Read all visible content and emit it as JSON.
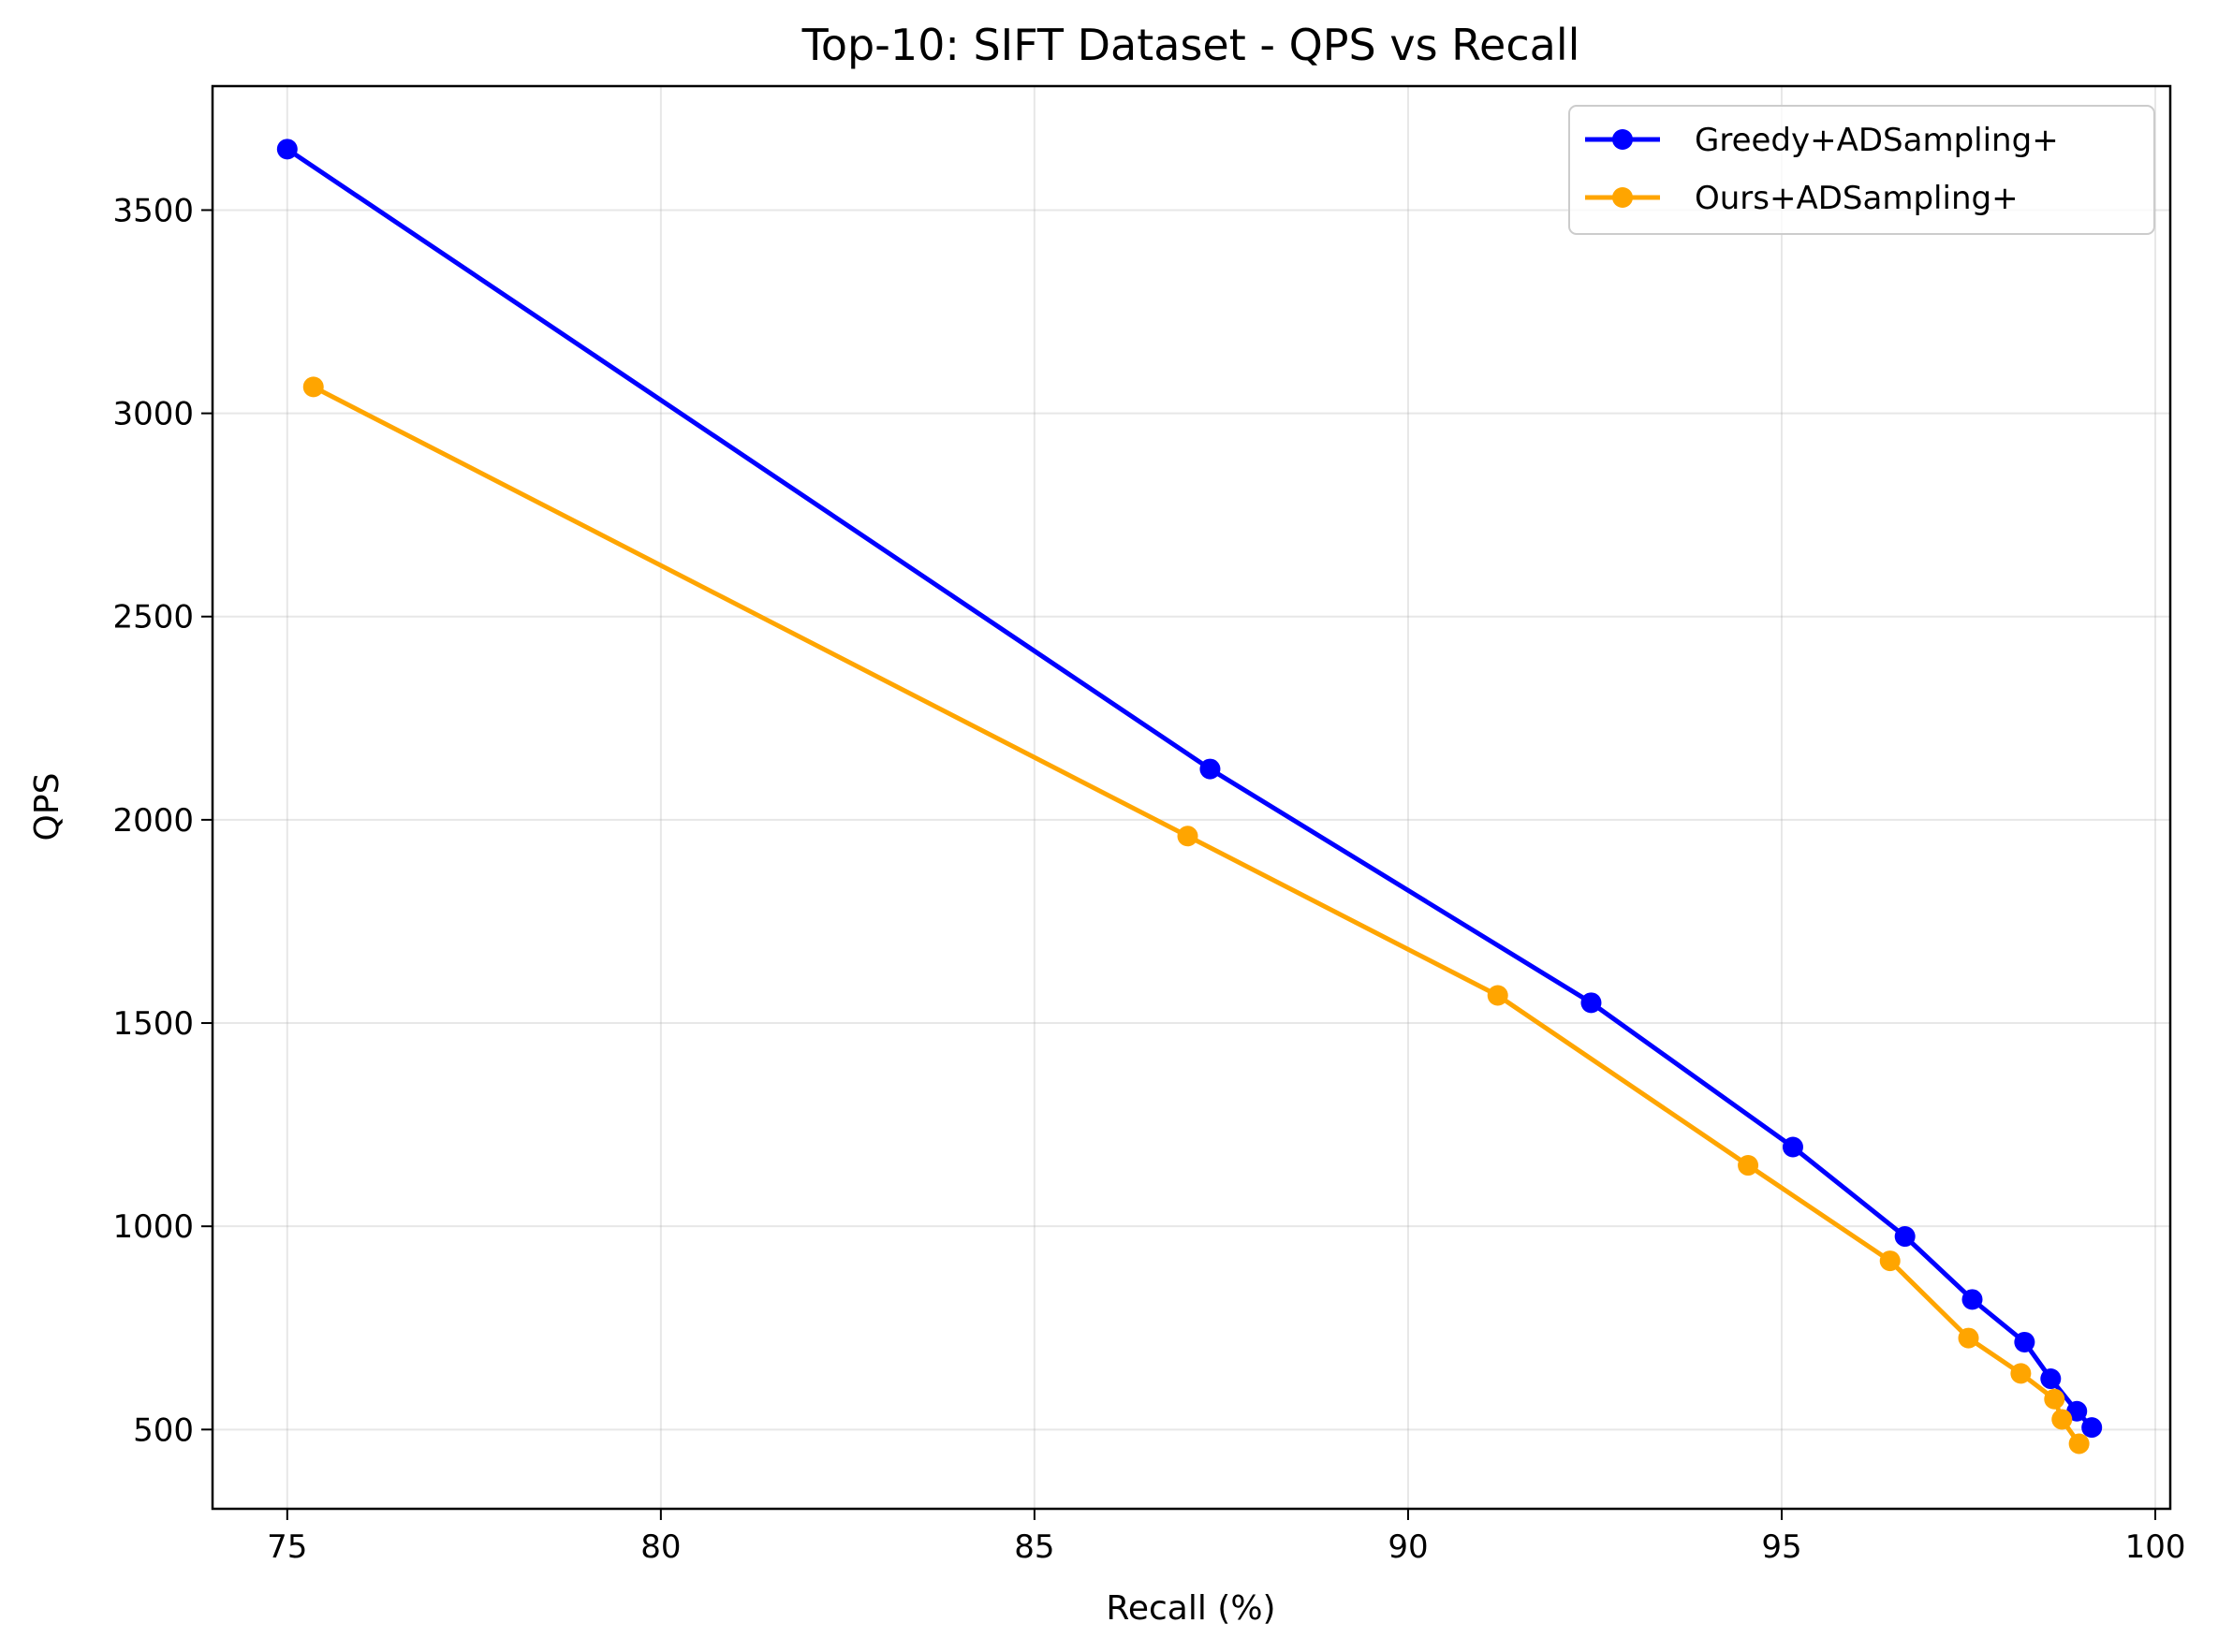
{
  "chart_data": {
    "type": "line",
    "title": "Top-10: SIFT Dataset - QPS vs Recall",
    "xlabel": "Recall (%)",
    "ylabel": "QPS",
    "xlim": [
      74,
      100.2
    ],
    "ylim": [
      305,
      3805
    ],
    "xticks": [
      75,
      80,
      85,
      90,
      95,
      100
    ],
    "yticks": [
      500,
      1000,
      1500,
      2000,
      2500,
      3000,
      3500
    ],
    "grid": true,
    "legend_position": "upper right",
    "series": [
      {
        "name": "Greedy+ADSampling+",
        "color": "#0000ff",
        "marker": "circle",
        "x": [
          75.0,
          87.35,
          92.45,
          95.15,
          96.65,
          97.55,
          98.25,
          98.6,
          98.95,
          99.15
        ],
        "y": [
          3650,
          2125,
          1550,
          1195,
          975,
          820,
          715,
          625,
          545,
          505
        ]
      },
      {
        "name": "Ours+ADSampling+",
        "color": "#ffa500",
        "marker": "circle",
        "x": [
          75.35,
          87.05,
          91.2,
          94.55,
          96.45,
          97.5,
          98.2,
          98.65,
          98.75,
          98.98
        ],
        "y": [
          3065,
          1960,
          1568,
          1150,
          915,
          725,
          638,
          575,
          525,
          465
        ]
      }
    ]
  }
}
